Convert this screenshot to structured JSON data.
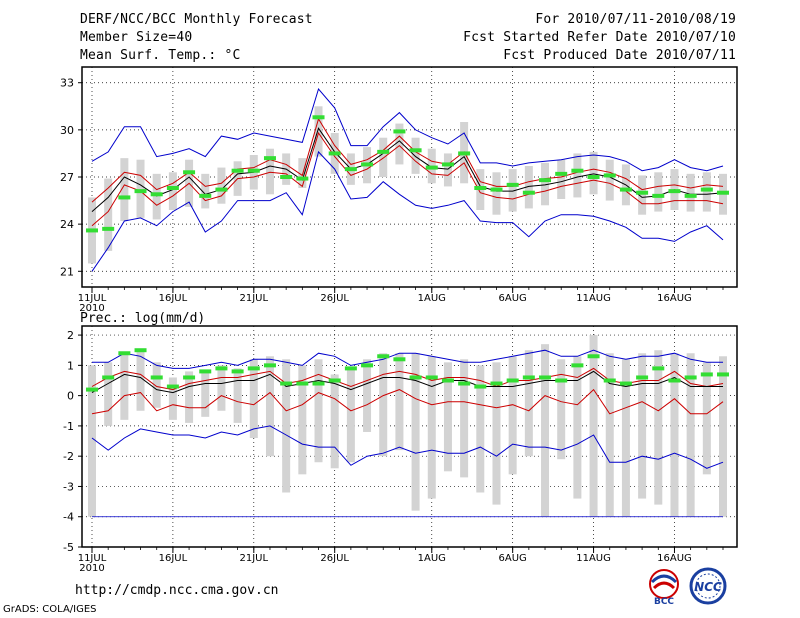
{
  "header": {
    "title": "DERF/NCC/BCC Monthly Forecast",
    "member_size": "Member Size=40",
    "variable": "Mean Surf. Temp.: °C",
    "period": "For 2010/07/11-2010/08/19",
    "start_ref": "Fcst Started Refer Date 2010/07/10",
    "produced": "Fcst Produced Date 2010/07/11"
  },
  "footer": {
    "url": "http://cmdp.ncc.cma.gov.cn",
    "grads": "GrADS: COLA/IGES",
    "logo_left_text": "BCC",
    "logo_right_text": "NCC"
  },
  "colors": {
    "envelope": "#0000cc",
    "spread": "#cc0000",
    "median": "#000000",
    "mean": "#33dd33",
    "box": "#d3d3d3"
  },
  "chart_data": [
    {
      "type": "box-ensemble",
      "title": "Mean Surf. Temp.: °C",
      "xlabel": "",
      "ylabel": "",
      "ylim": [
        20,
        34
      ],
      "yticks": [
        21,
        24,
        27,
        30,
        33
      ],
      "x_tick_labels": [
        "11JUL",
        "16JUL",
        "21JUL",
        "26JUL",
        "1AUG",
        "6AUG",
        "11AUG",
        "16AUG"
      ],
      "x_tick_index": [
        0,
        5,
        10,
        15,
        21,
        26,
        31,
        36
      ],
      "x_sub_label": "2010",
      "max": [
        28.0,
        28.6,
        30.2,
        30.2,
        28.3,
        28.5,
        28.8,
        28.3,
        29.6,
        29.4,
        29.8,
        29.6,
        29.4,
        29.2,
        32.6,
        31.4,
        29.0,
        29.0,
        30.2,
        31.1,
        30.0,
        29.5,
        29.1,
        29.8,
        27.9,
        27.9,
        27.7,
        27.9,
        28.0,
        28.1,
        28.3,
        28.4,
        28.3,
        28.0,
        27.4,
        27.6,
        28.1,
        27.6,
        27.4,
        27.7
      ],
      "p80": [
        25.4,
        26.3,
        27.3,
        27.1,
        26.2,
        26.6,
        27.3,
        26.4,
        26.6,
        27.5,
        27.6,
        28.1,
        27.8,
        27.1,
        30.7,
        29.0,
        27.8,
        28.1,
        28.7,
        29.6,
        28.6,
        28.0,
        27.8,
        28.6,
        26.7,
        26.4,
        26.4,
        26.7,
        26.9,
        27.0,
        27.3,
        27.5,
        27.3,
        26.9,
        26.2,
        26.4,
        26.5,
        26.3,
        26.5,
        26.4
      ],
      "median": [
        24.8,
        25.7,
        27.0,
        26.5,
        25.8,
        26.2,
        27.0,
        25.9,
        26.2,
        27.2,
        27.3,
        27.7,
        27.5,
        26.8,
        30.1,
        28.6,
        27.5,
        27.8,
        28.5,
        29.3,
        28.3,
        27.6,
        27.5,
        28.3,
        26.4,
        26.1,
        26.1,
        26.4,
        26.5,
        26.7,
        27.0,
        27.2,
        27.0,
        26.5,
        25.7,
        25.8,
        26.2,
        25.9,
        25.9,
        26.0
      ],
      "p20": [
        23.9,
        24.8,
        26.5,
        26.1,
        25.2,
        25.8,
        26.6,
        25.5,
        25.8,
        26.9,
        27.0,
        27.3,
        27.2,
        26.4,
        29.8,
        28.3,
        27.1,
        27.5,
        28.2,
        29.0,
        28.0,
        27.2,
        27.1,
        27.9,
        26.0,
        25.7,
        25.6,
        25.9,
        26.1,
        26.4,
        26.6,
        26.8,
        26.6,
        26.1,
        25.3,
        25.3,
        25.5,
        25.5,
        25.5,
        25.3
      ],
      "min": [
        21.0,
        22.5,
        24.2,
        24.4,
        23.9,
        24.8,
        25.4,
        23.5,
        24.2,
        25.5,
        25.5,
        25.5,
        26.0,
        24.6,
        28.6,
        27.5,
        25.6,
        25.7,
        26.7,
        25.9,
        25.2,
        25.0,
        25.2,
        25.5,
        24.2,
        24.1,
        24.1,
        23.2,
        24.2,
        24.6,
        24.6,
        24.5,
        24.2,
        23.8,
        23.1,
        23.1,
        22.9,
        23.5,
        23.9,
        23.0
      ],
      "box_lo": [
        21.5,
        22.3,
        24.2,
        24.4,
        24.3,
        24.9,
        25.1,
        25.0,
        25.3,
        25.8,
        26.2,
        25.9,
        26.5,
        26.3,
        28.3,
        27.2,
        26.5,
        26.6,
        27.0,
        27.8,
        27.2,
        26.6,
        26.4,
        26.6,
        24.9,
        24.6,
        24.8,
        25.0,
        25.2,
        25.6,
        25.7,
        25.9,
        25.5,
        25.2,
        24.6,
        24.8,
        24.9,
        24.8,
        24.8,
        24.6
      ],
      "box_hi": [
        25.7,
        26.9,
        28.2,
        28.1,
        27.2,
        27.3,
        28.1,
        27.2,
        27.6,
        28.0,
        28.4,
        28.8,
        28.5,
        28.2,
        31.5,
        29.8,
        28.5,
        28.9,
        29.5,
        30.4,
        29.5,
        28.8,
        28.5,
        30.5,
        27.5,
        27.3,
        27.5,
        27.7,
        27.9,
        28.1,
        28.5,
        28.6,
        28.1,
        27.8,
        27.1,
        27.3,
        27.5,
        27.2,
        27.3,
        27.2
      ],
      "mean": [
        23.6,
        23.7,
        25.7,
        26.1,
        25.9,
        26.3,
        27.3,
        25.8,
        26.2,
        27.4,
        27.4,
        28.2,
        27.0,
        26.9,
        30.8,
        28.5,
        27.5,
        27.8,
        28.6,
        29.9,
        28.7,
        27.6,
        27.8,
        28.5,
        26.3,
        26.2,
        26.5,
        26.0,
        26.8,
        27.2,
        27.4,
        27.0,
        27.1,
        26.2,
        26.0,
        25.8,
        26.1,
        25.8,
        26.2,
        26.0
      ]
    },
    {
      "type": "box-ensemble",
      "title": "Prec.: log(mm/d)",
      "xlabel": "",
      "ylabel": "",
      "ylim": [
        -5,
        2.3
      ],
      "yticks": [
        -5,
        -4,
        -3,
        -2,
        -1,
        0,
        1,
        2
      ],
      "x_tick_labels": [
        "11JUL",
        "16JUL",
        "21JUL",
        "26JUL",
        "1AUG",
        "6AUG",
        "11AUG",
        "16AUG"
      ],
      "x_tick_index": [
        0,
        5,
        10,
        15,
        21,
        26,
        31,
        36
      ],
      "x_sub_label": "2010",
      "max": [
        1.1,
        1.1,
        1.4,
        1.3,
        1.0,
        0.9,
        0.9,
        1.0,
        1.1,
        1.0,
        1.2,
        1.2,
        1.1,
        1.0,
        1.4,
        1.3,
        1.0,
        1.1,
        1.2,
        1.4,
        1.4,
        1.3,
        1.2,
        1.1,
        1.1,
        1.2,
        1.3,
        1.4,
        1.5,
        1.3,
        1.3,
        1.5,
        1.3,
        1.2,
        1.3,
        1.3,
        1.4,
        1.2,
        1.1,
        1.1
      ],
      "p80": [
        0.3,
        0.6,
        0.8,
        0.7,
        0.3,
        0.2,
        0.4,
        0.5,
        0.6,
        0.6,
        0.7,
        0.8,
        0.4,
        0.5,
        0.7,
        0.5,
        0.3,
        0.5,
        0.7,
        0.8,
        0.7,
        0.5,
        0.6,
        0.6,
        0.5,
        0.3,
        0.5,
        0.5,
        0.6,
        0.7,
        0.6,
        0.9,
        0.5,
        0.4,
        0.5,
        0.5,
        0.8,
        0.4,
        0.3,
        0.4
      ],
      "median": [
        0.1,
        0.4,
        0.7,
        0.6,
        0.2,
        0.1,
        0.3,
        0.4,
        0.4,
        0.5,
        0.5,
        0.7,
        0.3,
        0.4,
        0.5,
        0.4,
        0.2,
        0.4,
        0.6,
        0.6,
        0.5,
        0.3,
        0.5,
        0.5,
        0.3,
        0.3,
        0.3,
        0.4,
        0.5,
        0.5,
        0.5,
        0.8,
        0.4,
        0.3,
        0.4,
        0.4,
        0.6,
        0.3,
        0.3,
        0.3
      ],
      "p20": [
        -0.6,
        -0.5,
        0.0,
        0.1,
        -0.5,
        -0.3,
        -0.4,
        -0.4,
        0.0,
        -0.2,
        -0.3,
        0.1,
        -0.5,
        -0.3,
        0.1,
        -0.1,
        -0.5,
        -0.3,
        0.0,
        0.2,
        -0.1,
        -0.3,
        -0.2,
        -0.2,
        -0.3,
        -0.4,
        -0.3,
        -0.5,
        0.0,
        -0.2,
        -0.3,
        0.2,
        -0.6,
        -0.4,
        -0.2,
        -0.5,
        -0.1,
        -0.6,
        -0.6,
        -0.2
      ],
      "min": [
        -1.4,
        -1.8,
        -1.4,
        -1.1,
        -1.2,
        -1.3,
        -1.3,
        -1.4,
        -1.2,
        -1.3,
        -1.1,
        -1.0,
        -1.3,
        -1.6,
        -1.7,
        -1.7,
        -2.3,
        -2.0,
        -1.9,
        -1.7,
        -1.9,
        -1.8,
        -1.9,
        -1.9,
        -1.7,
        -2.0,
        -1.6,
        -1.7,
        -1.7,
        -1.8,
        -1.6,
        -1.3,
        -2.2,
        -2.2,
        -2.0,
        -2.1,
        -1.9,
        -2.1,
        -2.4,
        -2.2
      ],
      "box_lo": [
        -4.0,
        -1.0,
        -0.8,
        -0.5,
        -0.4,
        -0.8,
        -0.9,
        -0.7,
        -0.5,
        -0.9,
        -1.4,
        -2.0,
        -3.2,
        -2.6,
        -2.2,
        -2.4,
        -2.2,
        -1.2,
        -2.0,
        -1.8,
        -3.8,
        -3.4,
        -2.5,
        -2.7,
        -3.2,
        -3.6,
        -2.6,
        -2.0,
        -4.0,
        -2.1,
        -3.4,
        -4.0,
        -4.0,
        -4.0,
        -3.4,
        -3.6,
        -4.0,
        -4.0,
        -2.6,
        -4.0
      ],
      "box_hi": [
        1.0,
        1.1,
        1.4,
        1.5,
        1.1,
        0.6,
        0.8,
        0.8,
        1.0,
        0.9,
        1.2,
        1.3,
        1.2,
        1.0,
        1.2,
        0.7,
        0.9,
        1.2,
        1.4,
        1.4,
        1.4,
        1.3,
        1.1,
        1.2,
        1.0,
        1.1,
        1.3,
        1.5,
        1.7,
        1.2,
        1.3,
        2.0,
        1.4,
        1.2,
        1.4,
        1.5,
        1.4,
        1.4,
        1.1,
        1.3
      ],
      "mean": [
        0.2,
        0.6,
        1.4,
        1.5,
        0.6,
        0.3,
        0.6,
        0.8,
        0.9,
        0.8,
        0.9,
        1.0,
        0.4,
        0.4,
        0.4,
        0.5,
        0.9,
        1.0,
        1.3,
        1.2,
        0.6,
        0.6,
        0.5,
        0.4,
        0.3,
        0.4,
        0.5,
        0.6,
        0.6,
        0.5,
        1.0,
        1.3,
        0.5,
        0.4,
        0.6,
        0.9,
        0.5,
        0.6,
        0.7,
        0.7
      ],
      "floor": -4.0
    }
  ]
}
